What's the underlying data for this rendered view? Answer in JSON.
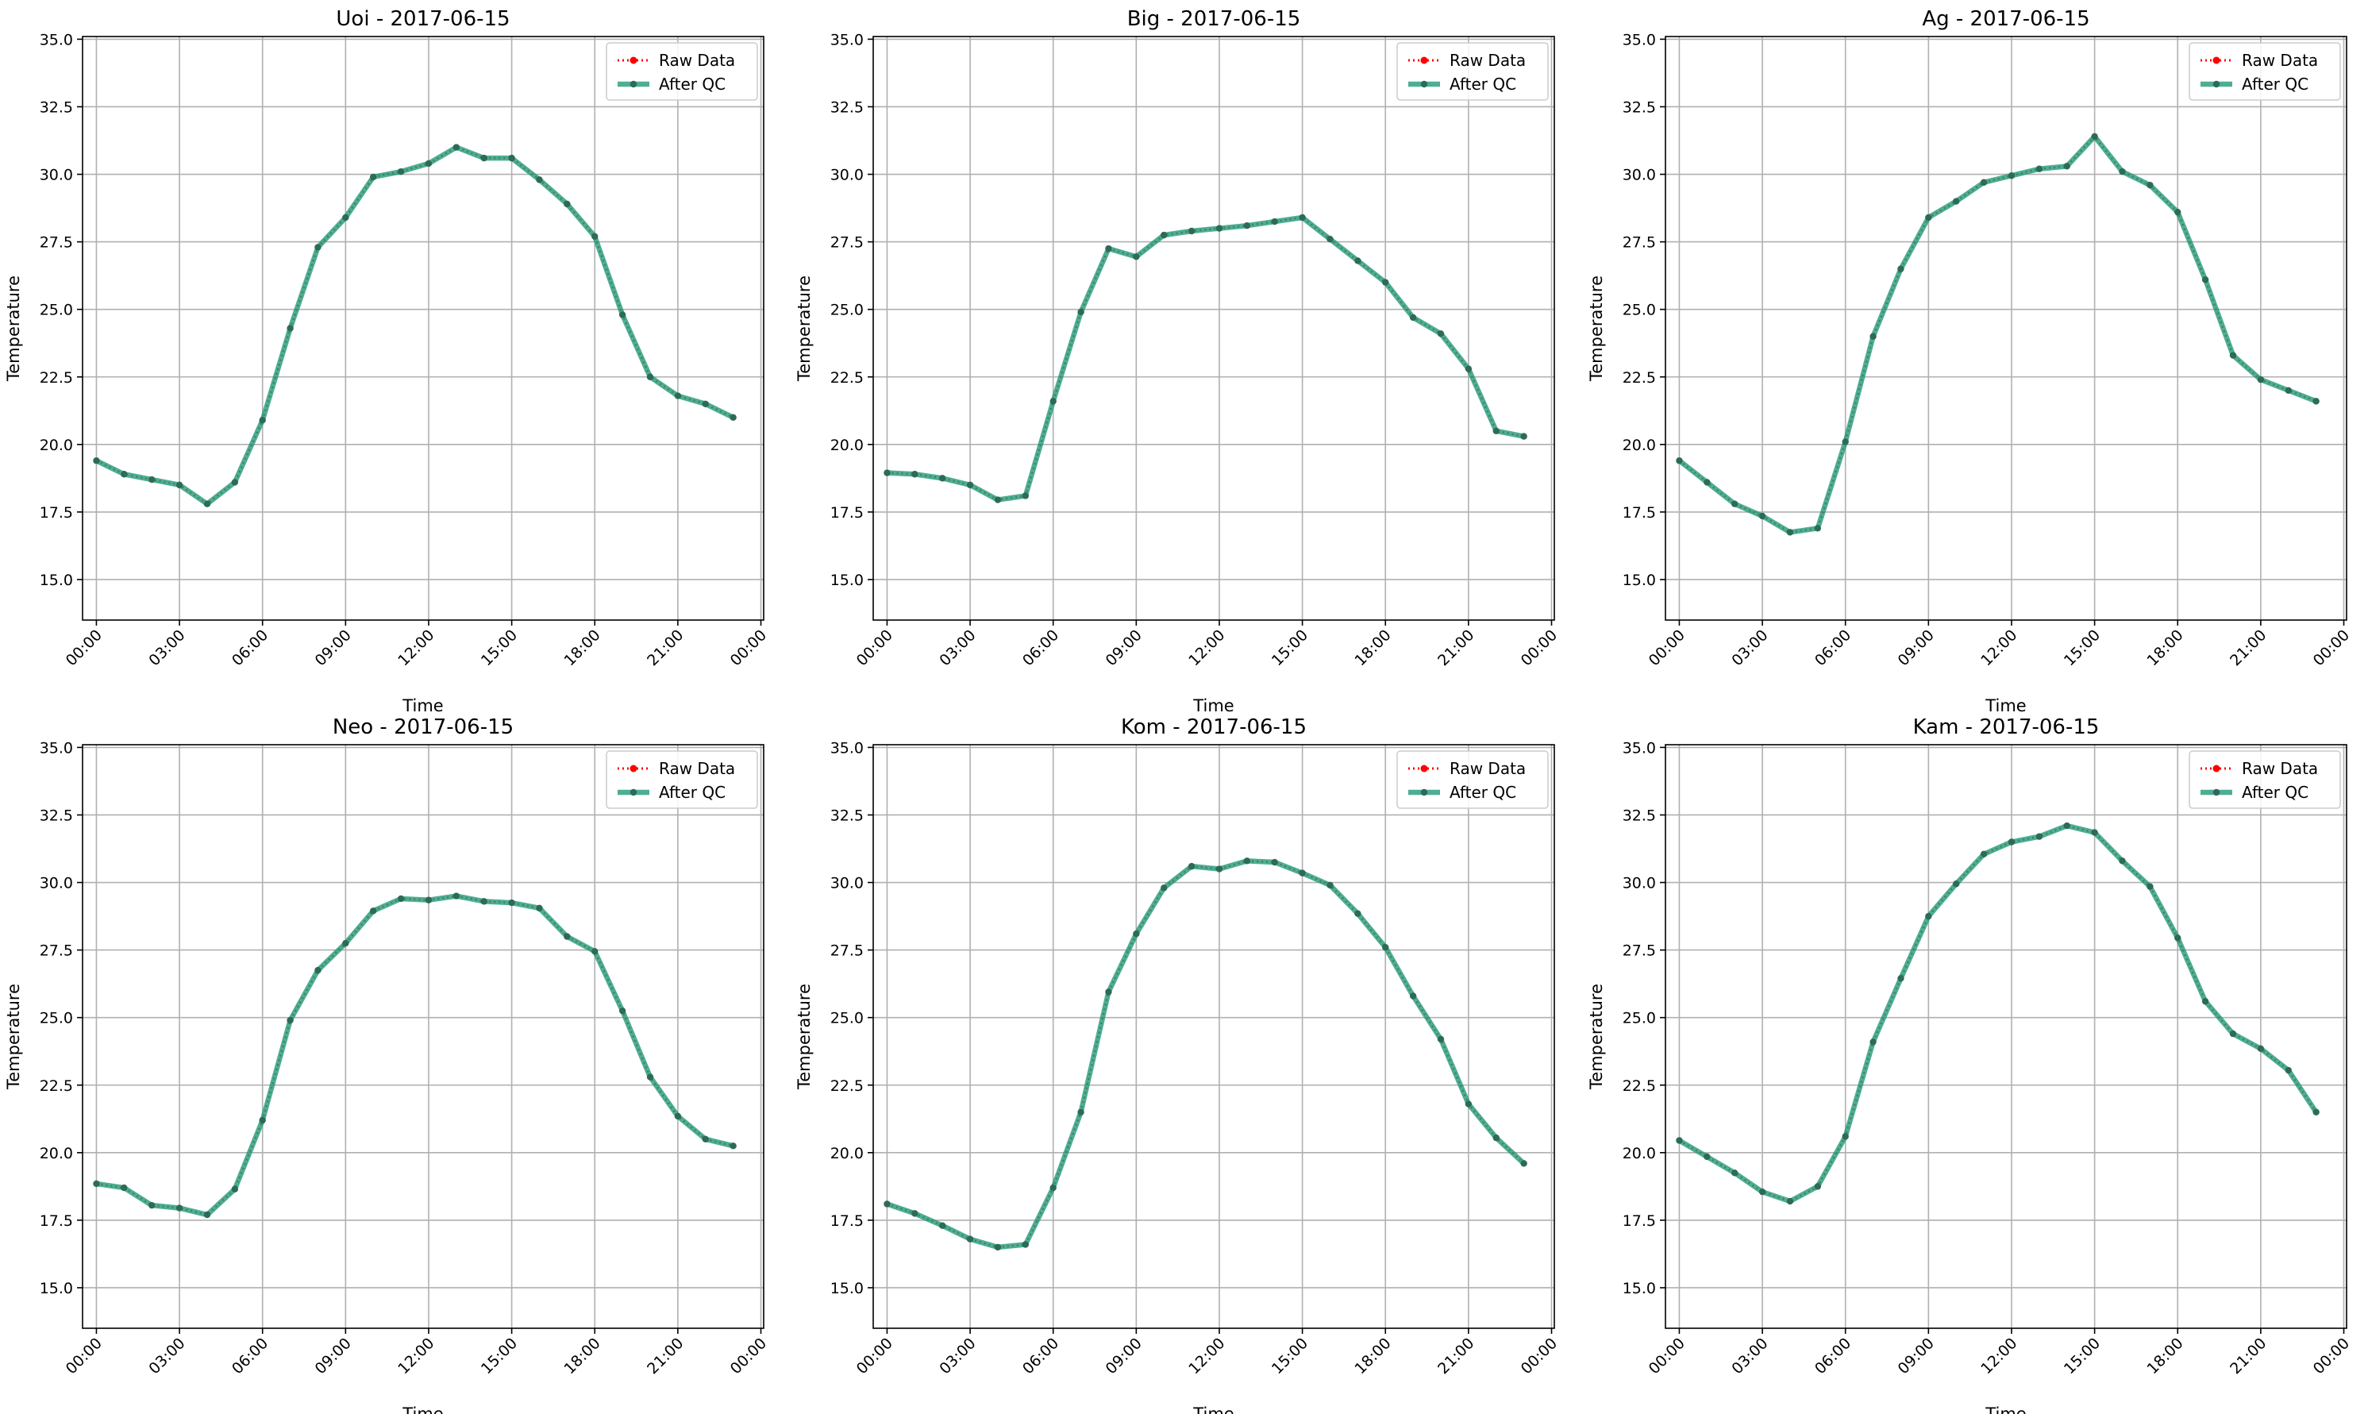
{
  "colors": {
    "raw": "#ff0000",
    "qc": "#1f9a78",
    "marker": "#2d6b57",
    "grid": "#b0b0b0",
    "axes": "#000000"
  },
  "chart_data": [
    {
      "type": "line",
      "title": "Uoi - 2017-06-15",
      "xlabel": "Time",
      "ylabel": "Temperature",
      "x_ticks": [
        "00:00",
        "03:00",
        "06:00",
        "09:00",
        "12:00",
        "15:00",
        "18:00",
        "21:00",
        "00:00"
      ],
      "y_ticks": [
        "15.0",
        "17.5",
        "20.0",
        "22.5",
        "25.0",
        "27.5",
        "30.0",
        "32.5",
        "35.0"
      ],
      "xlim": [
        -0.5,
        24.1
      ],
      "ylim": [
        13.5,
        35.1
      ],
      "grid": true,
      "legend": "upper right",
      "x": [
        0,
        1,
        2,
        3,
        4,
        5,
        6,
        7,
        8,
        9,
        10,
        11,
        12,
        13,
        14,
        15,
        16,
        17,
        18,
        19,
        20,
        21,
        22,
        23
      ],
      "series": [
        {
          "name": "Raw Data",
          "style": "dotted-red",
          "values": [
            19.4,
            18.9,
            18.7,
            18.5,
            17.8,
            18.6,
            20.9,
            24.3,
            27.3,
            28.4,
            29.9,
            30.1,
            30.4,
            31.0,
            30.6,
            30.6,
            29.8,
            28.9,
            27.7,
            24.8,
            22.5,
            21.8,
            21.5,
            21.0
          ]
        },
        {
          "name": "After QC",
          "style": "solid-green",
          "values": [
            19.4,
            18.9,
            18.7,
            18.5,
            17.8,
            18.6,
            20.9,
            24.3,
            27.3,
            28.4,
            29.9,
            30.1,
            30.4,
            31.0,
            30.6,
            30.6,
            29.8,
            28.9,
            27.7,
            24.8,
            22.5,
            21.8,
            21.5,
            21.0
          ]
        }
      ]
    },
    {
      "type": "line",
      "title": "Big - 2017-06-15",
      "xlabel": "Time",
      "ylabel": "Temperature",
      "x_ticks": [
        "00:00",
        "03:00",
        "06:00",
        "09:00",
        "12:00",
        "15:00",
        "18:00",
        "21:00",
        "00:00"
      ],
      "y_ticks": [
        "15.0",
        "17.5",
        "20.0",
        "22.5",
        "25.0",
        "27.5",
        "30.0",
        "32.5",
        "35.0"
      ],
      "xlim": [
        -0.5,
        24.1
      ],
      "ylim": [
        13.5,
        35.1
      ],
      "grid": true,
      "legend": "upper right",
      "x": [
        0,
        1,
        2,
        3,
        4,
        5,
        6,
        7,
        8,
        9,
        10,
        11,
        12,
        13,
        14,
        15,
        16,
        17,
        18,
        19,
        20,
        21,
        22,
        23
      ],
      "series": [
        {
          "name": "Raw Data",
          "style": "dotted-red",
          "values": [
            18.95,
            18.9,
            18.75,
            18.5,
            17.95,
            18.1,
            21.6,
            24.9,
            27.25,
            26.95,
            27.75,
            27.9,
            28.0,
            28.1,
            28.25,
            28.4,
            27.6,
            26.8,
            26.0,
            24.7,
            24.1,
            22.8,
            20.5,
            20.3
          ]
        },
        {
          "name": "After QC",
          "style": "solid-green",
          "values": [
            18.95,
            18.9,
            18.75,
            18.5,
            17.95,
            18.1,
            21.6,
            24.9,
            27.25,
            26.95,
            27.75,
            27.9,
            28.0,
            28.1,
            28.25,
            28.4,
            27.6,
            26.8,
            26.0,
            24.7,
            24.1,
            22.8,
            20.5,
            20.3
          ]
        }
      ]
    },
    {
      "type": "line",
      "title": "Ag - 2017-06-15",
      "xlabel": "Time",
      "ylabel": "Temperature",
      "x_ticks": [
        "00:00",
        "03:00",
        "06:00",
        "09:00",
        "12:00",
        "15:00",
        "18:00",
        "21:00",
        "00:00"
      ],
      "y_ticks": [
        "15.0",
        "17.5",
        "20.0",
        "22.5",
        "25.0",
        "27.5",
        "30.0",
        "32.5",
        "35.0"
      ],
      "xlim": [
        -0.5,
        24.1
      ],
      "ylim": [
        13.5,
        35.1
      ],
      "grid": true,
      "legend": "upper right",
      "x": [
        0,
        1,
        2,
        3,
        4,
        5,
        6,
        7,
        8,
        9,
        10,
        11,
        12,
        13,
        14,
        15,
        16,
        17,
        18,
        19,
        20,
        21,
        22,
        23
      ],
      "series": [
        {
          "name": "Raw Data",
          "style": "dotted-red",
          "values": [
            19.4,
            18.6,
            17.8,
            17.35,
            16.75,
            16.9,
            20.1,
            24.0,
            26.5,
            28.4,
            29.0,
            29.7,
            29.95,
            30.2,
            30.3,
            31.4,
            30.1,
            29.6,
            28.6,
            26.1,
            23.3,
            22.4,
            22.0,
            21.6
          ]
        },
        {
          "name": "After QC",
          "style": "solid-green",
          "values": [
            19.4,
            18.6,
            17.8,
            17.35,
            16.75,
            16.9,
            20.1,
            24.0,
            26.5,
            28.4,
            29.0,
            29.7,
            29.95,
            30.2,
            30.3,
            31.4,
            30.1,
            29.6,
            28.6,
            26.1,
            23.3,
            22.4,
            22.0,
            21.6
          ]
        }
      ]
    },
    {
      "type": "line",
      "title": "Neo - 2017-06-15",
      "xlabel": "Time",
      "ylabel": "Temperature",
      "x_ticks": [
        "00:00",
        "03:00",
        "06:00",
        "09:00",
        "12:00",
        "15:00",
        "18:00",
        "21:00",
        "00:00"
      ],
      "y_ticks": [
        "15.0",
        "17.5",
        "20.0",
        "22.5",
        "25.0",
        "27.5",
        "30.0",
        "32.5",
        "35.0"
      ],
      "xlim": [
        -0.5,
        24.1
      ],
      "ylim": [
        13.5,
        35.1
      ],
      "grid": true,
      "legend": "upper right",
      "x": [
        0,
        1,
        2,
        3,
        4,
        5,
        6,
        7,
        8,
        9,
        10,
        11,
        12,
        13,
        14,
        15,
        16,
        17,
        18,
        19,
        20,
        21,
        22,
        23
      ],
      "series": [
        {
          "name": "Raw Data",
          "style": "dotted-red",
          "values": [
            18.85,
            18.7,
            18.05,
            17.95,
            17.7,
            18.65,
            21.2,
            24.9,
            26.75,
            27.75,
            28.95,
            29.4,
            29.35,
            29.5,
            29.3,
            29.25,
            29.05,
            28.0,
            27.45,
            25.25,
            22.8,
            21.35,
            20.5,
            20.25
          ]
        },
        {
          "name": "After QC",
          "style": "solid-green",
          "values": [
            18.85,
            18.7,
            18.05,
            17.95,
            17.7,
            18.65,
            21.2,
            24.9,
            26.75,
            27.75,
            28.95,
            29.4,
            29.35,
            29.5,
            29.3,
            29.25,
            29.05,
            28.0,
            27.45,
            25.25,
            22.8,
            21.35,
            20.5,
            20.25
          ]
        }
      ]
    },
    {
      "type": "line",
      "title": "Kom - 2017-06-15",
      "xlabel": "Time",
      "ylabel": "Temperature",
      "x_ticks": [
        "00:00",
        "03:00",
        "06:00",
        "09:00",
        "12:00",
        "15:00",
        "18:00",
        "21:00",
        "00:00"
      ],
      "y_ticks": [
        "15.0",
        "17.5",
        "20.0",
        "22.5",
        "25.0",
        "27.5",
        "30.0",
        "32.5",
        "35.0"
      ],
      "xlim": [
        -0.5,
        24.1
      ],
      "ylim": [
        13.5,
        35.1
      ],
      "grid": true,
      "legend": "upper right",
      "x": [
        0,
        1,
        2,
        3,
        4,
        5,
        6,
        7,
        8,
        9,
        10,
        11,
        12,
        13,
        14,
        15,
        16,
        17,
        18,
        19,
        20,
        21,
        22,
        23
      ],
      "series": [
        {
          "name": "Raw Data",
          "style": "dotted-red",
          "values": [
            18.1,
            17.75,
            17.3,
            16.8,
            16.5,
            16.6,
            18.7,
            21.5,
            25.95,
            28.1,
            29.8,
            30.6,
            30.5,
            30.8,
            30.75,
            30.35,
            29.9,
            28.85,
            27.6,
            25.8,
            24.2,
            21.8,
            20.55,
            19.6
          ]
        },
        {
          "name": "After QC",
          "style": "solid-green",
          "values": [
            18.1,
            17.75,
            17.3,
            16.8,
            16.5,
            16.6,
            18.7,
            21.5,
            25.95,
            28.1,
            29.8,
            30.6,
            30.5,
            30.8,
            30.75,
            30.35,
            29.9,
            28.85,
            27.6,
            25.8,
            24.2,
            21.8,
            20.55,
            19.6
          ]
        }
      ]
    },
    {
      "type": "line",
      "title": "Kam - 2017-06-15",
      "xlabel": "Time",
      "ylabel": "Temperature",
      "x_ticks": [
        "00:00",
        "03:00",
        "06:00",
        "09:00",
        "12:00",
        "15:00",
        "18:00",
        "21:00",
        "00:00"
      ],
      "y_ticks": [
        "15.0",
        "17.5",
        "20.0",
        "22.5",
        "25.0",
        "27.5",
        "30.0",
        "32.5",
        "35.0"
      ],
      "xlim": [
        -0.5,
        24.1
      ],
      "ylim": [
        13.5,
        35.1
      ],
      "grid": true,
      "legend": "upper right",
      "x": [
        0,
        1,
        2,
        3,
        4,
        5,
        6,
        7,
        8,
        9,
        10,
        11,
        12,
        13,
        14,
        15,
        16,
        17,
        18,
        19,
        20,
        21,
        22,
        23
      ],
      "series": [
        {
          "name": "Raw Data",
          "style": "dotted-red",
          "values": [
            20.45,
            19.85,
            19.25,
            18.55,
            18.2,
            18.75,
            20.6,
            24.1,
            26.45,
            28.75,
            29.95,
            31.05,
            31.5,
            31.7,
            32.1,
            31.85,
            30.8,
            29.85,
            27.95,
            25.6,
            24.4,
            23.85,
            23.05,
            21.5
          ]
        },
        {
          "name": "After QC",
          "style": "solid-green",
          "values": [
            20.45,
            19.85,
            19.25,
            18.55,
            18.2,
            18.75,
            20.6,
            24.1,
            26.45,
            28.75,
            29.95,
            31.05,
            31.5,
            31.7,
            32.1,
            31.85,
            30.8,
            29.85,
            27.95,
            25.6,
            24.4,
            23.85,
            23.05,
            21.5
          ]
        }
      ]
    }
  ]
}
